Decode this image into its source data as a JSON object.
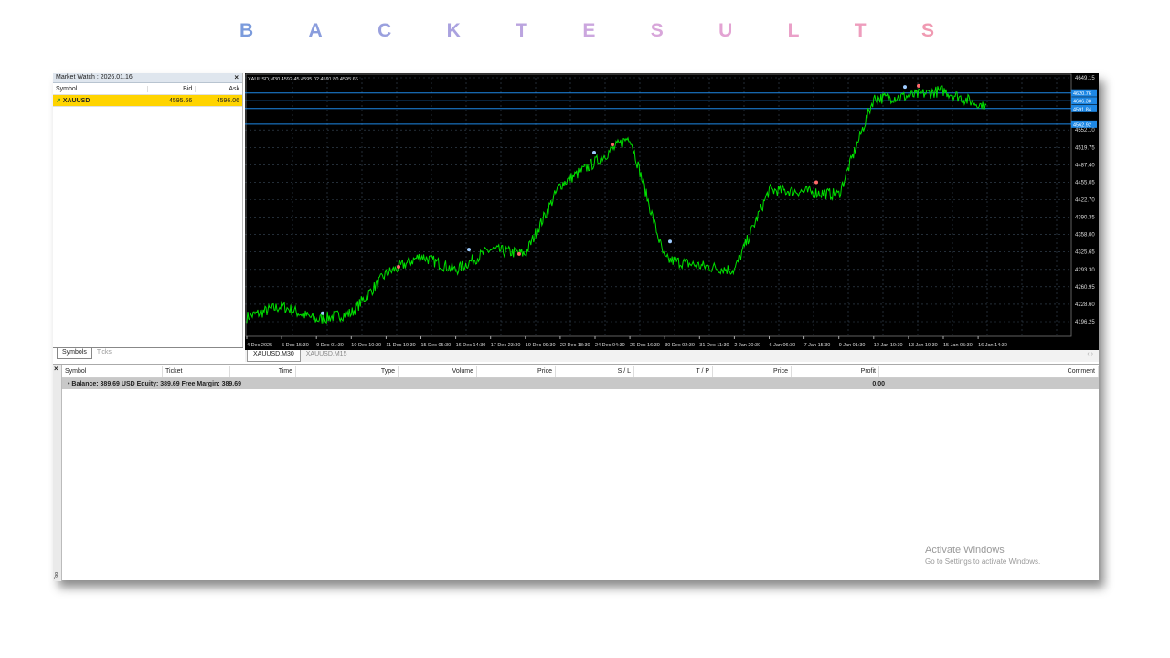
{
  "banner": {
    "letters": [
      "B",
      "A",
      "C",
      "K",
      "T",
      "E",
      "S",
      "U",
      "L",
      "T",
      "S"
    ],
    "colors": [
      "#7b9bdc",
      "#8a9ddd",
      "#9aa0de",
      "#aaa2df",
      "#bba4df",
      "#cba6de",
      "#d8a6da",
      "#e3a3d3",
      "#eaa0c8",
      "#ee9dbd",
      "#f09ab2"
    ]
  },
  "market_watch": {
    "title": "Market Watch : 2026.01.16",
    "close": "×",
    "columns": [
      "Symbol",
      "Bid",
      "Ask"
    ],
    "rows": [
      {
        "symbol": "XAUUSD",
        "bid": "4595.66",
        "ask": "4596.06",
        "icon": "arrow-up-right-icon"
      }
    ],
    "tabs": [
      "Symbols",
      "Ticks"
    ]
  },
  "chart": {
    "header": "XAUUSD,M30  4592.45 4595.02 4591.80 4595.66",
    "tabs": [
      "XAUUSD,M30",
      "XAUUSD,M15"
    ],
    "scroll_arrows": "‹ ›",
    "colors": {
      "background": "#000000",
      "line": "#00e000",
      "level": "#1e88e5",
      "grid": "#3a4a5a"
    }
  },
  "chart_data": {
    "type": "line",
    "y_ticks": [
      "4649.15",
      "4552.10",
      "4519.75",
      "4487.40",
      "4455.05",
      "4422.70",
      "4390.35",
      "4358.00",
      "4325.65",
      "4293.30",
      "4260.95",
      "4228.60",
      "4196.25"
    ],
    "ylim": [
      4190,
      4655
    ],
    "price_labels": [
      "4620.76",
      "4606.38",
      "4591.84",
      "4562.92"
    ],
    "x_ticks": [
      "4 Dec 2025",
      "5 Dec 15:30",
      "9 Dec 01:30",
      "10 Dec 10:30",
      "11 Dec 19:30",
      "15 Dec 05:30",
      "16 Dec 14:30",
      "17 Dec 23:30",
      "19 Dec 09:30",
      "22 Dec 18:30",
      "24 Dec 04:30",
      "26 Dec 16:30",
      "30 Dec 02:30",
      "31 Dec 11:30",
      "2 Jan 20:30",
      "6 Jan 06:30",
      "7 Jan 15:30",
      "9 Jan 01:30",
      "12 Jan 10:30",
      "13 Jan 19:30",
      "15 Jan 05:30",
      "16 Jan 14:30"
    ],
    "close_at_ticks": [
      4205,
      4225,
      4200,
      4212,
      4285,
      4318,
      4292,
      4330,
      4322,
      4450,
      4492,
      4540,
      4312,
      4300,
      4292,
      4440,
      4438,
      4432,
      4610,
      4615,
      4625,
      4600
    ],
    "last": 4595.66
  },
  "terminal": {
    "close": "×",
    "side_label": "Too",
    "columns": [
      "Symbol",
      "Ticket",
      "Time",
      "Type",
      "Volume",
      "Price",
      "S / L",
      "T / P",
      "Price",
      "Profit",
      "Comment"
    ],
    "balance_line": "Balance: 389.69 USD  Equity: 389.69  Free Margin: 389.69",
    "profit": "0.00"
  },
  "activation": {
    "title": "Activate Windows",
    "subtitle": "Go to Settings to activate Windows."
  }
}
